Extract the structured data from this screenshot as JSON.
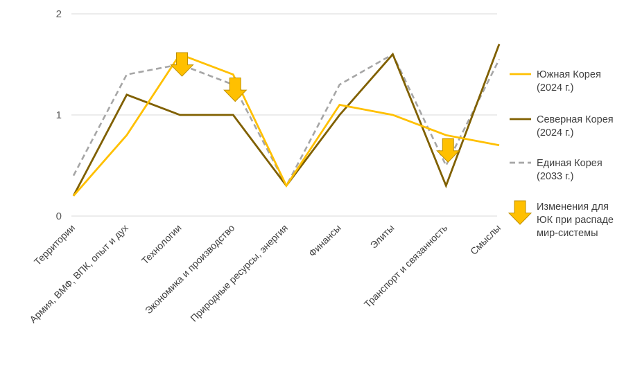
{
  "chart_data": {
    "type": "line",
    "categories": [
      "Территории",
      "Армия, ВМФ, ВПК, опыт и дух",
      "Технологии",
      "Экономика и производство",
      "Природные ресурсы, энергия",
      "Финансы",
      "Элиты",
      "Транспорт и связанность",
      "Смыслы"
    ],
    "ylim": [
      0,
      2
    ],
    "yticks": [
      "0",
      "1",
      "2"
    ],
    "grid": true,
    "legend_position": "right",
    "series": [
      {
        "name_lines": [
          "Южная Корея",
          "(2024 г.)"
        ],
        "values": [
          0.2,
          0.8,
          1.6,
          1.4,
          0.3,
          1.1,
          1.0,
          0.8,
          0.7
        ],
        "color": "#FFC000",
        "style": "solid"
      },
      {
        "name_lines": [
          "Северная Корея",
          "(2024 г.)"
        ],
        "values": [
          0.2,
          1.2,
          1.0,
          1.0,
          0.3,
          1.0,
          1.6,
          0.3,
          1.7
        ],
        "color": "#806000",
        "style": "solid"
      },
      {
        "name_lines": [
          "Единая Корея",
          "(2033 г.)"
        ],
        "values": [
          0.4,
          1.4,
          1.5,
          1.3,
          0.3,
          1.3,
          1.6,
          0.5,
          1.55
        ],
        "color": "#A6A6A6",
        "style": "dashed"
      }
    ],
    "annotations": {
      "legend_lines": [
        "Изменения для",
        "ЮК при распаде",
        "мир-системы"
      ],
      "color": "#FFC000",
      "arrows": [
        {
          "category_index": 2,
          "value": 1.5
        },
        {
          "category_index": 3,
          "value": 1.25
        },
        {
          "category_index": 7,
          "value": 0.65
        }
      ]
    }
  }
}
